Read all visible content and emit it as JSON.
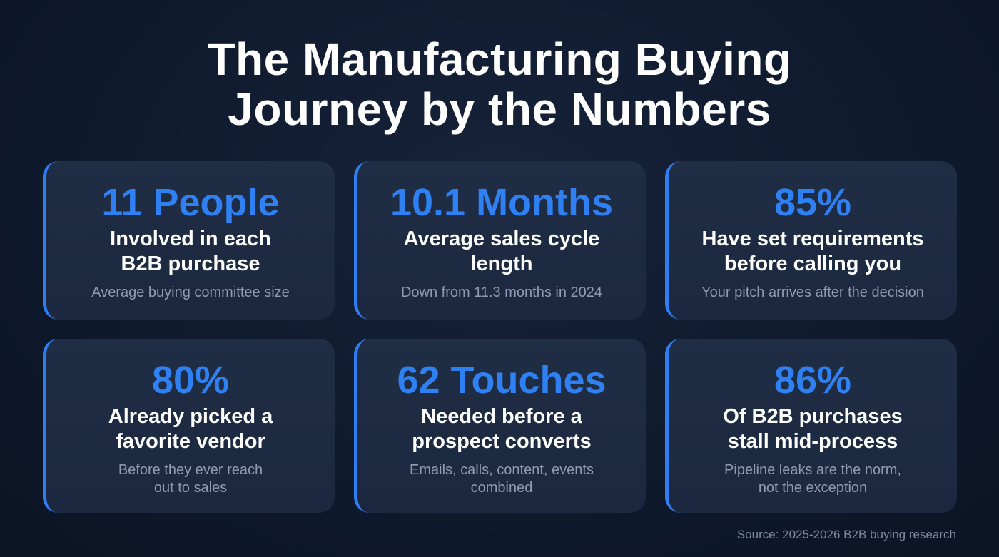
{
  "title": {
    "line1": "The Manufacturing Buying",
    "line2": "Journey by the Numbers"
  },
  "cards": [
    {
      "stat": "11 People",
      "desc1": "Involved in each",
      "desc2": "B2B purchase",
      "note1": "Average buying committee size",
      "note2": ""
    },
    {
      "stat": "10.1 Months",
      "desc1": "Average sales cycle",
      "desc2": "length",
      "note1": "Down from 11.3 months in 2024",
      "note2": ""
    },
    {
      "stat": "85%",
      "desc1": "Have set requirements",
      "desc2": "before calling you",
      "note1": "Your pitch arrives after the decision",
      "note2": ""
    },
    {
      "stat": "80%",
      "desc1": "Already picked a",
      "desc2": "favorite vendor",
      "note1": "Before they ever reach",
      "note2": "out to sales"
    },
    {
      "stat": "62 Touches",
      "desc1": "Needed before a",
      "desc2": "prospect converts",
      "note1": "Emails, calls, content, events",
      "note2": "combined"
    },
    {
      "stat": "86%",
      "desc1": "Of B2B purchases",
      "desc2": "stall mid-process",
      "note1": "Pipeline leaks are the norm,",
      "note2": "not the exception"
    }
  ],
  "source": "Source: 2025-2026 B2B buying research",
  "colors": {
    "accent": "#2f80f2",
    "card": "#1f2d45",
    "background": "#0f1a2e"
  }
}
